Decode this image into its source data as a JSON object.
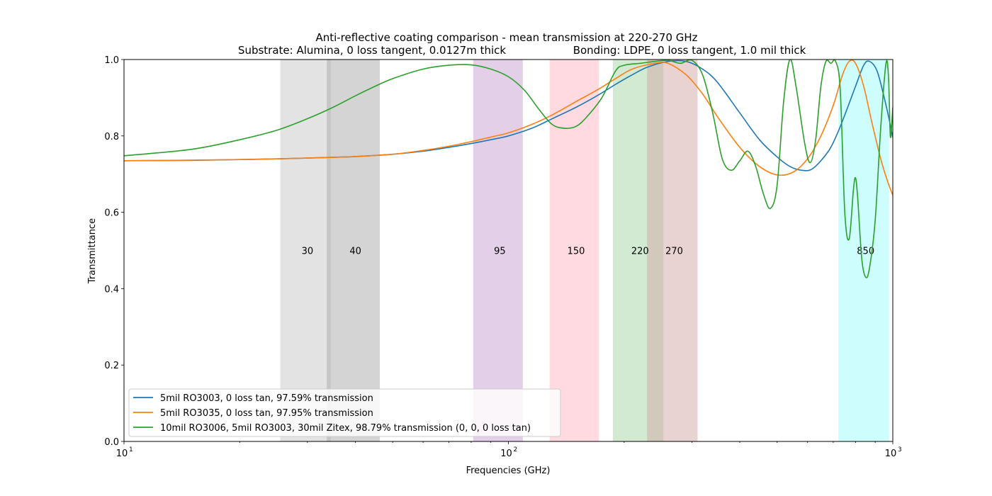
{
  "chart_data": {
    "type": "line",
    "title": "Anti-reflective coating comparison - mean transmission at 220-270 GHz",
    "subtitle_left": "Substrate: Alumina, 0 loss tangent, 0.0127m thick",
    "subtitle_right": "Bonding: LDPE, 0 loss tangent, 1.0 mil thick",
    "xlabel": "Frequencies (GHz)",
    "ylabel": "Transmittance",
    "xscale": "log",
    "xlim": [
      10,
      1000
    ],
    "ylim": [
      0,
      1
    ],
    "x_ticks": [
      10,
      100,
      1000
    ],
    "x_tick_labels": [
      "10",
      "10",
      "10"
    ],
    "x_tick_exponents": [
      "1",
      "2",
      "3"
    ],
    "y_ticks": [
      0,
      0.2,
      0.4,
      0.6,
      0.8,
      1.0
    ],
    "y_tick_labels": [
      "0.0",
      "0.2",
      "0.4",
      "0.6",
      "0.8",
      "1.0"
    ],
    "grid": false,
    "legend_position": "lower-left",
    "bands": [
      {
        "label": "30",
        "start": 25.5,
        "end": 34.5,
        "color": "#c8c8c8",
        "label_x": 30
      },
      {
        "label": "40",
        "start": 33.7,
        "end": 46.3,
        "color": "#a9a9a9",
        "label_x": 40
      },
      {
        "label": "95",
        "start": 81,
        "end": 109,
        "color": "#c7a0cf",
        "label_x": 95
      },
      {
        "label": "150",
        "start": 128,
        "end": 172,
        "color": "#ffb6c1",
        "label_x": 150
      },
      {
        "label": "220",
        "start": 187,
        "end": 253,
        "color": "#a6d6a6",
        "label_x": 220
      },
      {
        "label": "270",
        "start": 229.5,
        "end": 310.5,
        "color": "#d4a5a5",
        "label_x": 270
      },
      {
        "label": "850",
        "start": 722,
        "end": 978,
        "color": "#9dfcfc",
        "label_x": 850
      }
    ],
    "series": [
      {
        "name": "5mil RO3003, 0 loss tan, 97.59% transmission",
        "color": "#1f77b4",
        "points": [
          [
            10,
            0.735
          ],
          [
            15,
            0.736
          ],
          [
            20,
            0.738
          ],
          [
            25,
            0.74
          ],
          [
            30,
            0.742
          ],
          [
            35,
            0.744
          ],
          [
            40,
            0.746
          ],
          [
            50,
            0.752
          ],
          [
            60,
            0.76
          ],
          [
            70,
            0.77
          ],
          [
            80,
            0.78
          ],
          [
            90,
            0.79
          ],
          [
            100,
            0.8
          ],
          [
            115,
            0.82
          ],
          [
            130,
            0.845
          ],
          [
            150,
            0.875
          ],
          [
            170,
            0.905
          ],
          [
            190,
            0.935
          ],
          [
            210,
            0.96
          ],
          [
            230,
            0.98
          ],
          [
            260,
            0.995
          ],
          [
            290,
            0.995
          ],
          [
            320,
            0.975
          ],
          [
            350,
            0.94
          ],
          [
            400,
            0.86
          ],
          [
            450,
            0.79
          ],
          [
            500,
            0.745
          ],
          [
            540,
            0.72
          ],
          [
            580,
            0.71
          ],
          [
            620,
            0.715
          ],
          [
            680,
            0.76
          ],
          [
            720,
            0.81
          ],
          [
            760,
            0.87
          ],
          [
            800,
            0.93
          ],
          [
            840,
            0.985
          ],
          [
            870,
            0.995
          ],
          [
            910,
            0.97
          ],
          [
            950,
            0.9
          ],
          [
            980,
            0.84
          ],
          [
            1000,
            0.795
          ]
        ]
      },
      {
        "name": "5mil RO3035, 0 loss tan, 97.95% transmission",
        "color": "#ff7f0e",
        "points": [
          [
            10,
            0.735
          ],
          [
            20,
            0.738
          ],
          [
            30,
            0.742
          ],
          [
            40,
            0.746
          ],
          [
            50,
            0.752
          ],
          [
            60,
            0.762
          ],
          [
            70,
            0.773
          ],
          [
            80,
            0.785
          ],
          [
            90,
            0.797
          ],
          [
            100,
            0.808
          ],
          [
            115,
            0.83
          ],
          [
            130,
            0.855
          ],
          [
            150,
            0.89
          ],
          [
            170,
            0.92
          ],
          [
            190,
            0.95
          ],
          [
            210,
            0.975
          ],
          [
            240,
            0.99
          ],
          [
            260,
            0.99
          ],
          [
            290,
            0.96
          ],
          [
            320,
            0.91
          ],
          [
            350,
            0.85
          ],
          [
            400,
            0.77
          ],
          [
            450,
            0.72
          ],
          [
            500,
            0.698
          ],
          [
            550,
            0.705
          ],
          [
            600,
            0.74
          ],
          [
            650,
            0.8
          ],
          [
            700,
            0.88
          ],
          [
            740,
            0.96
          ],
          [
            770,
            0.995
          ],
          [
            800,
            0.99
          ],
          [
            840,
            0.93
          ],
          [
            880,
            0.84
          ],
          [
            930,
            0.74
          ],
          [
            970,
            0.68
          ],
          [
            1000,
            0.645
          ]
        ]
      },
      {
        "name": "10mil RO3006, 5mil RO3003, 30mil Zitex, 98.79% transmission (0, 0, 0 loss tan)",
        "color": "#2ca02c",
        "points": [
          [
            10,
            0.748
          ],
          [
            15,
            0.765
          ],
          [
            20,
            0.79
          ],
          [
            25,
            0.815
          ],
          [
            30,
            0.845
          ],
          [
            35,
            0.875
          ],
          [
            40,
            0.905
          ],
          [
            45,
            0.93
          ],
          [
            50,
            0.95
          ],
          [
            60,
            0.975
          ],
          [
            70,
            0.985
          ],
          [
            80,
            0.986
          ],
          [
            90,
            0.975
          ],
          [
            100,
            0.955
          ],
          [
            110,
            0.92
          ],
          [
            120,
            0.87
          ],
          [
            130,
            0.83
          ],
          [
            140,
            0.82
          ],
          [
            150,
            0.825
          ],
          [
            160,
            0.85
          ],
          [
            175,
            0.9
          ],
          [
            190,
            0.97
          ],
          [
            200,
            0.985
          ],
          [
            220,
            0.99
          ],
          [
            240,
            0.995
          ],
          [
            260,
            0.998
          ],
          [
            280,
            0.99
          ],
          [
            300,
            0.998
          ],
          [
            320,
            0.96
          ],
          [
            340,
            0.86
          ],
          [
            360,
            0.74
          ],
          [
            380,
            0.71
          ],
          [
            400,
            0.735
          ],
          [
            420,
            0.76
          ],
          [
            440,
            0.72
          ],
          [
            460,
            0.65
          ],
          [
            480,
            0.61
          ],
          [
            500,
            0.67
          ],
          [
            520,
            0.89
          ],
          [
            540,
            1.0
          ],
          [
            560,
            0.93
          ],
          [
            590,
            0.78
          ],
          [
            610,
            0.73
          ],
          [
            630,
            0.79
          ],
          [
            650,
            0.93
          ],
          [
            670,
            0.995
          ],
          [
            690,
            0.99
          ],
          [
            710,
            0.995
          ],
          [
            730,
            0.92
          ],
          [
            750,
            0.6
          ],
          [
            770,
            0.53
          ],
          [
            790,
            0.66
          ],
          [
            800,
            0.69
          ],
          [
            810,
            0.64
          ],
          [
            830,
            0.48
          ],
          [
            850,
            0.43
          ],
          [
            870,
            0.455
          ],
          [
            900,
            0.58
          ],
          [
            930,
            0.82
          ],
          [
            960,
            0.99
          ],
          [
            975,
            0.95
          ],
          [
            985,
            0.8
          ],
          [
            995,
            0.84
          ],
          [
            1000,
            0.875
          ]
        ]
      }
    ]
  }
}
